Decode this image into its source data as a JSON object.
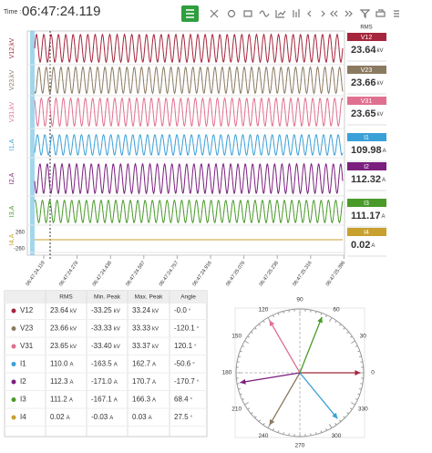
{
  "header": {
    "time_label": "Time :",
    "time": "06:47:24.119"
  },
  "waveforms": {
    "channels": [
      {
        "label": "V12,kV",
        "color": "#a5263c"
      },
      {
        "label": "V23,kV",
        "color": "#8b7a62"
      },
      {
        "label": "V31,kV",
        "color": "#e0708f"
      },
      {
        "label": "I1,A",
        "color": "#3aa0d8"
      },
      {
        "label": "I2,A",
        "color": "#7b1f7e"
      },
      {
        "label": "I3,A",
        "color": "#4a9a2a"
      },
      {
        "label": "I4,A",
        "color": "#c8a030"
      }
    ],
    "i4_ticks": [
      260,
      -260
    ],
    "time_labels": [
      "06:47:24.119",
      "06:47:24.278",
      "06:47:24.438",
      "06:47:24.597",
      "06:47:24.757",
      "06:47:24.916",
      "06:47:25.076",
      "06:47:25.236",
      "06:47:25.316",
      "06:47:25.396"
    ]
  },
  "rms_panel": {
    "title": "RMS",
    "items": [
      {
        "name": "V12",
        "value": 23.64,
        "unit": "kV",
        "color": "#a5263c"
      },
      {
        "name": "V23",
        "value": 23.66,
        "unit": "kV",
        "color": "#8b7a62"
      },
      {
        "name": "V31",
        "value": 23.65,
        "unit": "kV",
        "color": "#e0708f"
      },
      {
        "name": "I1",
        "value": 109.98,
        "unit": "A",
        "color": "#3aa0d8"
      },
      {
        "name": "I2",
        "value": 112.32,
        "unit": "A",
        "color": "#7b1f7e"
      },
      {
        "name": "I3",
        "value": 111.17,
        "unit": "A",
        "color": "#4a9a2a"
      },
      {
        "name": "I4",
        "value": 0.02,
        "unit": "A",
        "color": "#c8a030"
      }
    ]
  },
  "table": {
    "columns": [
      "RMS",
      "Min. Peak",
      "Max. Peak",
      "Angle"
    ],
    "rows": [
      {
        "name": "V12",
        "color": "#a5263c",
        "rms": {
          "value": "23.64",
          "unit": "kV"
        },
        "min_peak": {
          "value": "-33.25",
          "unit": "kV"
        },
        "max_peak": {
          "value": "33.24",
          "unit": "kV"
        },
        "angle": {
          "value": "-0.0",
          "unit": "°"
        }
      },
      {
        "name": "V23",
        "color": "#8b7a62",
        "rms": {
          "value": "23.66",
          "unit": "kV"
        },
        "min_peak": {
          "value": "-33.33",
          "unit": "kV"
        },
        "max_peak": {
          "value": "33.33",
          "unit": "kV"
        },
        "angle": {
          "value": "-120.1",
          "unit": "°"
        }
      },
      {
        "name": "V31",
        "color": "#e0708f",
        "rms": {
          "value": "23.65",
          "unit": "kV"
        },
        "min_peak": {
          "value": "-33.40",
          "unit": "kV"
        },
        "max_peak": {
          "value": "33.37",
          "unit": "kV"
        },
        "angle": {
          "value": "120.1",
          "unit": "°"
        }
      },
      {
        "name": "I1",
        "color": "#3aa0d8",
        "rms": {
          "value": "110.0",
          "unit": "A"
        },
        "min_peak": {
          "value": "-163.5",
          "unit": "A"
        },
        "max_peak": {
          "value": "162.7",
          "unit": "A"
        },
        "angle": {
          "value": "-50.6",
          "unit": "°"
        }
      },
      {
        "name": "I2",
        "color": "#7b1f7e",
        "rms": {
          "value": "112.3",
          "unit": "A"
        },
        "min_peak": {
          "value": "-171.0",
          "unit": "A"
        },
        "max_peak": {
          "value": "170.7",
          "unit": "A"
        },
        "angle": {
          "value": "-170.7",
          "unit": "°"
        }
      },
      {
        "name": "I3",
        "color": "#4a9a2a",
        "rms": {
          "value": "111.2",
          "unit": "A"
        },
        "min_peak": {
          "value": "-167.1",
          "unit": "A"
        },
        "max_peak": {
          "value": "166.3",
          "unit": "A"
        },
        "angle": {
          "value": "68.4",
          "unit": "°"
        }
      },
      {
        "name": "I4",
        "color": "#c8a030",
        "rms": {
          "value": "0.02",
          "unit": "A"
        },
        "min_peak": {
          "value": "-0.03",
          "unit": "A"
        },
        "max_peak": {
          "value": "0.03",
          "unit": "A"
        },
        "angle": {
          "value": "27.5",
          "unit": "°"
        }
      }
    ]
  },
  "phasor": {
    "angle_labels": [
      0,
      30,
      60,
      90,
      120,
      150,
      180,
      210,
      240,
      270,
      300,
      330
    ]
  }
}
